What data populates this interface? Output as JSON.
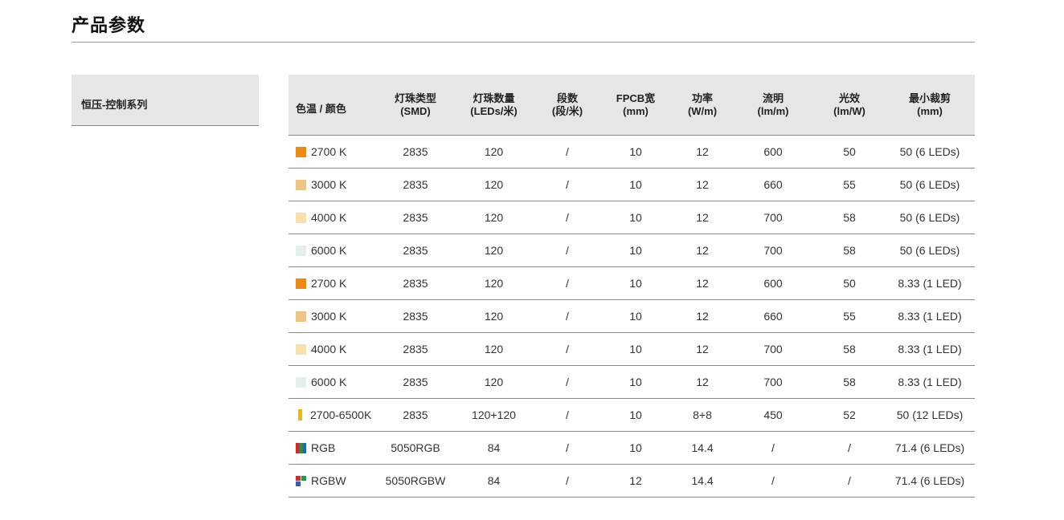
{
  "page": {
    "title": "产品参数"
  },
  "series": {
    "label": "恒压-控制系列"
  },
  "table": {
    "headers": [
      {
        "line1": "色温 / 颜色",
        "line2": ""
      },
      {
        "line1": "灯珠类型",
        "line2": "(SMD)"
      },
      {
        "line1": "灯珠数量",
        "line2": "(LEDs/米)"
      },
      {
        "line1": "段数",
        "line2": "(段/米)"
      },
      {
        "line1": "FPCB宽",
        "line2": "(mm)"
      },
      {
        "line1": "功率",
        "line2": "(W/m)"
      },
      {
        "line1": "流明",
        "line2": "(lm/m)"
      },
      {
        "line1": "光效",
        "line2": "(lm/W)"
      },
      {
        "line1": "最小裁剪",
        "line2": "(mm)"
      }
    ],
    "rows": [
      {
        "swatch": "solid",
        "colors": [
          "#ee8a12"
        ],
        "cct": "2700 K",
        "smd": "2835",
        "leds": "120",
        "segments": "/",
        "fpcb": "10",
        "power": "12",
        "lumen": "600",
        "efficacy": "50",
        "cut": "50 (6 LEDs)"
      },
      {
        "swatch": "solid",
        "colors": [
          "#edc485"
        ],
        "cct": "3000 K",
        "smd": "2835",
        "leds": "120",
        "segments": "/",
        "fpcb": "10",
        "power": "12",
        "lumen": "660",
        "efficacy": "55",
        "cut": "50 (6 LEDs)"
      },
      {
        "swatch": "solid",
        "colors": [
          "#f8e1a8"
        ],
        "cct": "4000 K",
        "smd": "2835",
        "leds": "120",
        "segments": "/",
        "fpcb": "10",
        "power": "12",
        "lumen": "700",
        "efficacy": "58",
        "cut": "50 (6 LEDs)"
      },
      {
        "swatch": "solid",
        "colors": [
          "#e4eeec"
        ],
        "cct": "6000 K",
        "smd": "2835",
        "leds": "120",
        "segments": "/",
        "fpcb": "10",
        "power": "12",
        "lumen": "700",
        "efficacy": "58",
        "cut": "50 (6 LEDs)"
      },
      {
        "swatch": "solid",
        "colors": [
          "#ee8a12"
        ],
        "cct": "2700 K",
        "smd": "2835",
        "leds": "120",
        "segments": "/",
        "fpcb": "10",
        "power": "12",
        "lumen": "600",
        "efficacy": "50",
        "cut": "8.33 (1 LED)"
      },
      {
        "swatch": "solid",
        "colors": [
          "#edc485"
        ],
        "cct": "3000 K",
        "smd": "2835",
        "leds": "120",
        "segments": "/",
        "fpcb": "10",
        "power": "12",
        "lumen": "660",
        "efficacy": "55",
        "cut": "8.33 (1 LED)"
      },
      {
        "swatch": "solid",
        "colors": [
          "#f8e1a8"
        ],
        "cct": "4000 K",
        "smd": "2835",
        "leds": "120",
        "segments": "/",
        "fpcb": "10",
        "power": "12",
        "lumen": "700",
        "efficacy": "58",
        "cut": "8.33 (1 LED)"
      },
      {
        "swatch": "solid",
        "colors": [
          "#e4eeec"
        ],
        "cct": "6000 K",
        "smd": "2835",
        "leds": "120",
        "segments": "/",
        "fpcb": "10",
        "power": "12",
        "lumen": "700",
        "efficacy": "58",
        "cut": "8.33 (1 LED)"
      },
      {
        "swatch": "bar",
        "colors": [
          "#f5b400"
        ],
        "cct": "2700-6500K",
        "smd": "2835",
        "leds": "120+120",
        "segments": "/",
        "fpcb": "10",
        "power": "8+8",
        "lumen": "450",
        "efficacy": "52",
        "cut": "50 (12 LEDs)"
      },
      {
        "swatch": "rgb",
        "colors": [
          "#d8262b",
          "#1f9a3a",
          "#2c5fb5"
        ],
        "cct": "RGB",
        "smd": "5050RGB",
        "leds": "84",
        "segments": "/",
        "fpcb": "10",
        "power": "14.4",
        "lumen": "/",
        "efficacy": "/",
        "cut": "71.4 (6 LEDs)"
      },
      {
        "swatch": "rgbw",
        "colors": [
          "#d8262b",
          "#1f9a3a",
          "#2c5fb5",
          "#f4f4f4"
        ],
        "cct": "RGBW",
        "smd": "5050RGBW",
        "leds": "84",
        "segments": "/",
        "fpcb": "12",
        "power": "14.4",
        "lumen": "/",
        "efficacy": "/",
        "cut": "71.4 (6 LEDs)"
      }
    ]
  }
}
